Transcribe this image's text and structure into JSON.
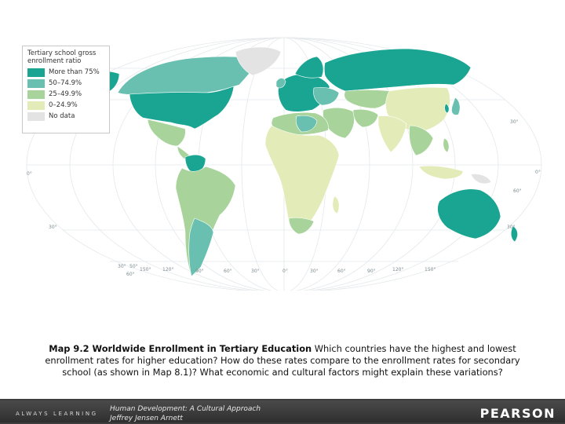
{
  "legend": {
    "title": "Tertiary school gross enrollment ratio",
    "items": [
      {
        "label": "More than 75%",
        "color": "#1aa592"
      },
      {
        "label": "50–74.9%",
        "color": "#69c0b0"
      },
      {
        "label": "25–49.9%",
        "color": "#a8d49c"
      },
      {
        "label": "0–24.9%",
        "color": "#e3ecb8"
      },
      {
        "label": "No data",
        "color": "#e3e3e3"
      }
    ]
  },
  "map": {
    "ocean_color": "#ffffff",
    "latitude_labels": [
      "30°",
      "0°",
      "30°",
      "60°",
      "30°",
      "0°",
      "30°",
      "50°",
      "60°"
    ],
    "longitude_labels": [
      "150°",
      "120°",
      "90°",
      "60°",
      "30°",
      "0°",
      "30°",
      "60°",
      "90°",
      "120°",
      "150°"
    ]
  },
  "caption": {
    "title": "Map 9.2  Worldwide Enrollment in Tertiary Education",
    "text": "  Which countries have the highest and lowest enrollment rates for higher education? How do these rates compare to the enrollment rates for secondary school (as shown in Map 8.1)? What economic and cultural factors might explain these variations?"
  },
  "footer": {
    "tagline": "ALWAYS LEARNING",
    "book_title": "Human Development: A Cultural Approach",
    "author": "Jeffrey Jensen Arnett",
    "publisher": "PEARSON"
  }
}
